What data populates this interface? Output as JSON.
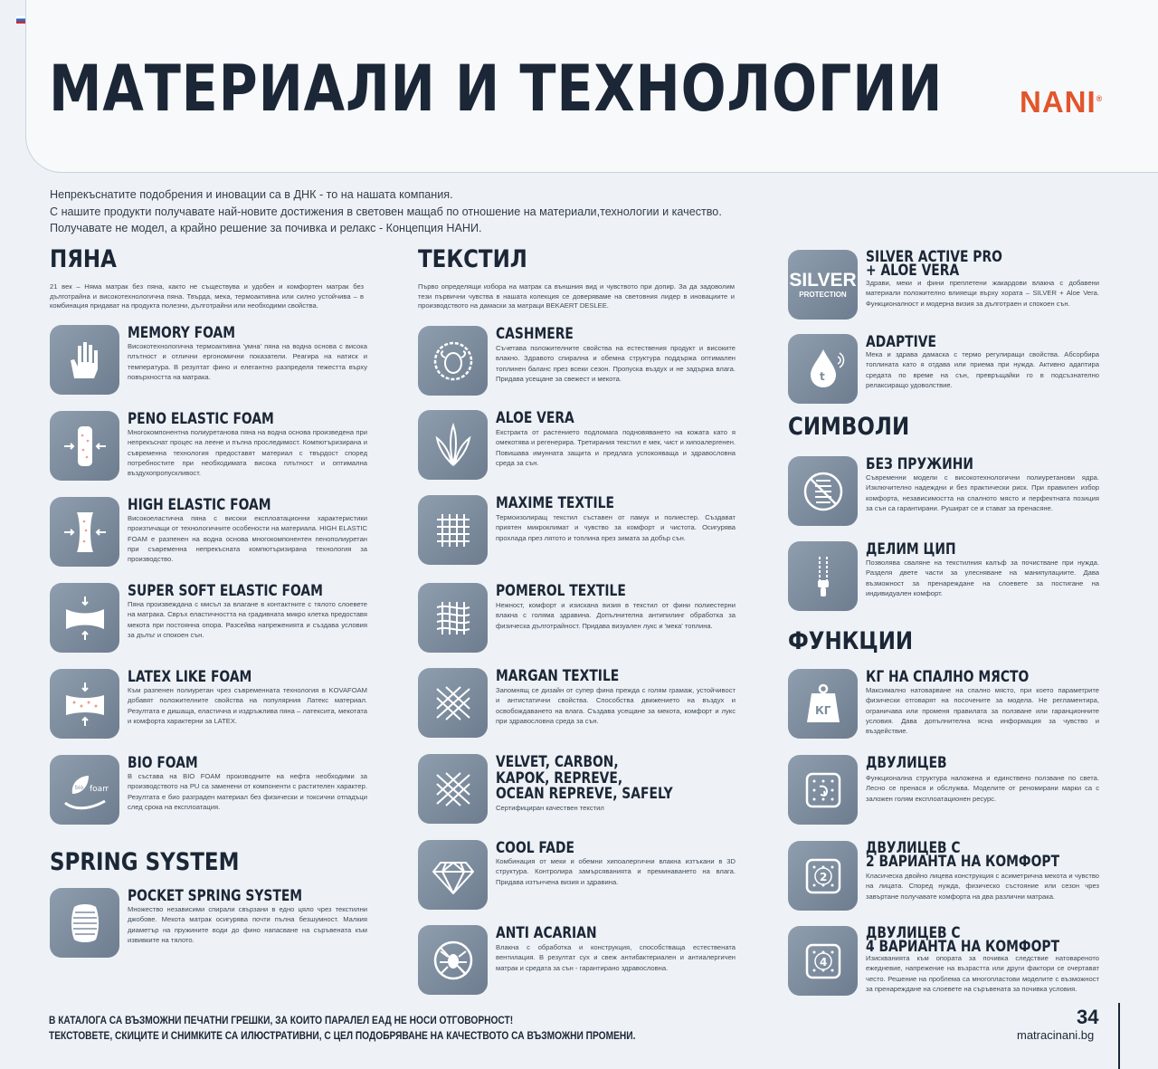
{
  "title": "МАТЕРИАЛИ И ТЕХНОЛОГИИ",
  "brand": "NANI",
  "intro": [
    "Непрекъснатите подобрения и иновации са в ДНК - то на нашата компания.",
    "С нашите продукти получавате най-новите достижения в световен мащаб по отношение на материали,технологии и качество.",
    "Получавате не модел, а крайно решение за почивка и релакс - Концепция НАНИ."
  ],
  "sections": {
    "foams": {
      "title": "ПЯНА",
      "desc": "21 век – Няма матрак без пяна, както не съществува и удобен и комфортен матрак без дълготрайна и високотехнологична пяна. Твърда, мека, термоактивна или силно устойчива – в комбинация придават на продукта полезни, дълготрайни или необходими свойства.",
      "items": [
        {
          "title": "MEMORY FOAM",
          "desc": "Високотехнологична термоактивна 'умна' пяна на водна основа с висока плътност и отлични ергономични показатели. Реагира на натиск и температура. В резултат фино и елегантно разпределя тежестта върху повърхността на матрака."
        },
        {
          "title": "PENO ELASTIC FOAM",
          "desc": "Многокомпонентна полиуретанова пяна на водна основа произведена при непрекъснат процес на леене и пълна проследимост. Компютъризирана и съвременна технология предоставят материал с твърдост според потребностите при необходимата висока плътност и оптимална въздухопропускливост."
        },
        {
          "title": "HIGH ELASTIC FOAM",
          "desc": "Високоеластична пяна с високи експлоатационни характеристики произтичащи от технологичните особености на материала. HIGH ELASTIC FOAM е разпенен на водна основа многокомпонентен пенополиуретан при съвременна непрекъсната компютъризирана технология за производство."
        },
        {
          "title": "SUPER SOFT ELASTIC FOAM",
          "desc": "Пяна произвеждана с мисъл за влагане в контактните с тялото слоевете на матрака. Свръх еластичността на градивната микро клетка предоставя мекота при постоянна опора. Разсейва напреженията и създава условия за дълъг и спокоен сън."
        },
        {
          "title": "LATEX LIKE FOAM",
          "desc": "Към разпенен полиуретан чрез съвременната технология в KOVAFOAM добавят положителните свойства на популярния Латекс материал. Резултата е дишаща, еластична и издръжлива пяна – латексита, мекотата и комфорта характерни за LATEX."
        },
        {
          "title": "BIO FOAM",
          "desc": "В състава на BIO FOAM производните на нефта необходими за производството на PU са заменени от компоненти с растителен характер. Резултата е био разграден материал без физически и токсични отпадъци след срока на експлоатация."
        }
      ]
    },
    "spring": {
      "title": "SPRING SYSTEM",
      "items": [
        {
          "title": "POCKET SPRING SYSTEM",
          "desc": "Множество независими спирали свързани в едно цяло чрез текстилни джобове. Мекота матрак осигурява почти пълна безшумност. Малкия диаметър на пружините води до фино напасване на съръвената към извивките на тялото."
        }
      ]
    },
    "textile": {
      "title": "ТЕКСТИЛ",
      "desc": "Първо определящи избора на матрак са външния вид и чувството при допир. За да задоволим тези първични чувства в нашата колекция се доверяваме на световния лидер в иновациите и производството на дамаски за матраци BEKAERT DESLEE.",
      "items": [
        {
          "title": "CASHMERE",
          "desc": "Съчетава положителните свойства на естествения продукт и високите влакно. Здравото спирална и обемна структура поддържа оптимален топлинен баланс през всеки сезон. Пропуска въздух и не задържа влага. Придава усещане за свежест и мекота."
        },
        {
          "title": "ALOE VERA",
          "desc": "Екстракта от растението подломага подновяването на кожата като я омекотява и регенерира. Третирания текстил е мек, чист и хипоалергенен. Повишава имунната защита и предлага успокояваща и здравословна среда за сън."
        },
        {
          "title": "MAXIME TEXTILE",
          "desc": "Термоизолиращ текстил съставен от памук и полиестер. Създават приятен микроклимат и чувство за комфорт и чистота. Осигурява прохлада през лятото и топлина през зимата за добър сън."
        },
        {
          "title": "POMEROL TEXTILE",
          "desc": "Нежност, комфорт и изискана визия в текстил от фини полиестерни влакна с голяма здравина. Допълнителна антипилинг обработка за физическа дълготрайност. Придава визуален лукс и 'мека' топлина."
        },
        {
          "title": "MARGAN TEXTILE",
          "desc": "Запомнящ се дизайн от супер фина прежда с голям грамаж, устойчивост и антистатични свойства. Способства движението на въздух и освобождаването на влага. Създава усещане за мекота, комфорт и лукс при здравословна среда за сън."
        },
        {
          "title": "VELVET, CARBON,|KAPOK, REPREVE,|OCEAN REPREVE, SAFELY",
          "desc": "Сертифициран качествен текстил"
        },
        {
          "title": "COOL FADE",
          "desc": "Комбинация от меки и обемни хипоалергични влакна изтъкани в 3D структура. Контролира замърсяванията и преминаването на влага. Придава изтънчена визия и здравина."
        },
        {
          "title": "ANTI ACARIAN",
          "desc": "Влакна с обработка и конструкция, способстваща естествената вентилация. В резултат сух и свеж антибактериален и антиалергичен матрак и средата за сън - гарантирано здравословна."
        }
      ]
    },
    "special": {
      "items": [
        {
          "title": "SILVER ACTIVE PRO|+ ALOE VERA",
          "desc": "Здрави, меки и фини преплетени жакардови влакна с добавени материали положително влияещи върху хората – SILVER + Aloe Vera. Функционалност и модерна визия за дълготраен и спокоен сън.",
          "badge": [
            "SILVER",
            "PROTECTION"
          ]
        },
        {
          "title": "ADAPTIVE",
          "desc": "Мека и здрава дамаска с термо регулиращи свойства. Абсорбира топлината като я отдава или приема при нужда. Активно адаптира средата по време на сън, превръщайки го в подсъзнателно релаксиращо удоволствие."
        }
      ]
    },
    "symbols": {
      "title": "СИМВОЛИ",
      "items": [
        {
          "title": "БЕЗ ПРУЖИНИ",
          "desc": "Съвременни модели с високотехнологични полиуретанови ядра. Изключително надеждни и без практически риск. При правилен избор комфорта, независимостта на спалното място и перфектната позиция за сън са гарантирани. Рушират се и стават за пренасяне."
        },
        {
          "title": "ДЕЛИМ ЦИП",
          "desc": "Позволява сваляне на текстилния калъф за почистване при нужда. Разделя двете части за улесняване на манипулациите. Дава възможност за пренареждане на слоевете за постигане на индивидуален комфорт."
        }
      ]
    },
    "functions": {
      "title": "ФУНКЦИИ",
      "items": [
        {
          "title": "КГ НА СПАЛНО МЯСТО",
          "desc": "Максимално натоварване на спално място, при което параметрите физически отговарят на посочените за модела. Не регламентира, ограничава или променя правилата за ползване или гаранционните условия. Дава допълнителна ясна информация за чувство и въздействие.",
          "badge": "КГ"
        },
        {
          "title": "ДВУЛИЦЕВ",
          "desc": "Функционална структура наложена и единствено ползване по света. Лесно се пренася и обслужва. Моделите от реномирани марки са с заложен голям експлоатационен ресурс."
        },
        {
          "title": "ДВУЛИЦЕВ С|2 ВАРИАНТА НА КОМФОРТ",
          "desc": "Класическа двойно лицева конструкция с асиметрична мекота и чувство на лицата. Според нужда, физическо състояние или сезон чрез завъртане получавате комфорта на два различни матрака."
        },
        {
          "title": "ДВУЛИЦЕВ С|4 ВАРИАНТА НА КОМФОРТ",
          "desc": "Изискванията към опората за почивка следствие натовареното ежедневие, напрежение на възрастта или други фактори се очертават често. Решение на проблема са многопластови моделите с възможност за пренареждане на слоевете на съръвената за почивка условия."
        }
      ]
    }
  },
  "footer": {
    "line1": "В КАТАЛОГА СА ВЪЗМОЖНИ ПЕЧАТНИ ГРЕШКИ, ЗА КОИТО ПАРАЛЕЛ ЕАД НЕ НОСИ ОТГОВОРНОСТ!",
    "line2": "ТЕКСТОВЕТЕ, СКИЦИТЕ И СНИМКИТЕ СА ИЛЮСТРАТИВНИ, С ЦЕЛ ПОДОБРЯВАНЕ НА КАЧЕСТВОТО СА ВЪЗМОЖНИ ПРОМЕНИ.",
    "page": "34",
    "site": "matracinani.bg"
  },
  "colors": {
    "accent": "#e2552b",
    "icon_bg": "#7e8ea0",
    "heading": "#1b2636"
  },
  "icons": [
    "hand-icon",
    "foam-layer-icon",
    "foam-layer-icon",
    "compression-icon",
    "latex-icon",
    "bio-foam-icon",
    "spring-icon",
    "sheep-icon",
    "aloe-icon",
    "weave-icon",
    "weave-icon",
    "weave-icon",
    "weave-icon",
    "diamond-icon",
    "mite-icon",
    "water-drop-icon",
    "no-spring-icon",
    "zipper-icon",
    "weight-icon",
    "flip-icon",
    "flip-icon",
    "flip-icon"
  ]
}
